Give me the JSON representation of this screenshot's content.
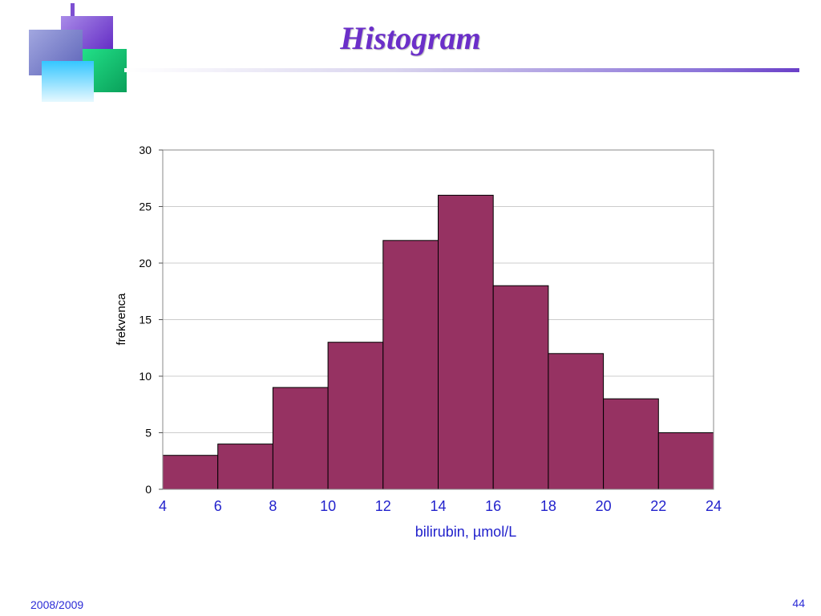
{
  "slide": {
    "title": "Histogram",
    "footer_left": "2008/2009",
    "page_number": "44"
  },
  "colors": {
    "bar_fill": "#963262",
    "x_tick_color": "#2222cc",
    "title_color": "#6b2fc9"
  },
  "chart_data": {
    "type": "bar",
    "title": "",
    "xlabel": "bilirubin, µmol/L",
    "ylabel": "frekvenca",
    "bin_edges": [
      4,
      6,
      8,
      10,
      12,
      14,
      16,
      18,
      20,
      22,
      24
    ],
    "x_tick_labels": [
      "4",
      "6",
      "8",
      "10",
      "12",
      "14",
      "16",
      "18",
      "20",
      "22",
      "24"
    ],
    "values": [
      3,
      4,
      9,
      13,
      22,
      26,
      18,
      12,
      8,
      5
    ],
    "ylim": [
      0,
      30
    ],
    "y_ticks": [
      0,
      5,
      10,
      15,
      20,
      25,
      30
    ],
    "grid": "horizontal",
    "legend": "none"
  }
}
